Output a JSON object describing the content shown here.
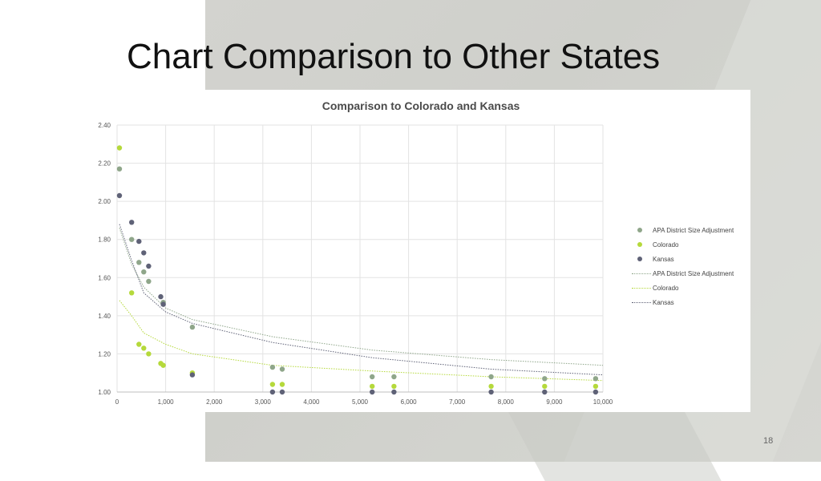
{
  "slide": {
    "title": "Chart Comparison to Other States",
    "page_number": "18"
  },
  "colors": {
    "apa": "#8fa68a",
    "colorado": "#b5d93b",
    "kansas": "#5f6277",
    "grid": "#e3e3e3"
  },
  "chart_data": {
    "type": "scatter",
    "title": "Comparison to Colorado and Kansas",
    "xlabel": "",
    "ylabel": "",
    "xlim": [
      0,
      10000
    ],
    "ylim": [
      1.0,
      2.4
    ],
    "x_ticks": [
      "0",
      "1,000",
      "2,000",
      "3,000",
      "4,000",
      "5,000",
      "6,000",
      "7,000",
      "8,000",
      "9,000",
      "10,000"
    ],
    "y_ticks": [
      "1.00",
      "1.20",
      "1.40",
      "1.60",
      "1.80",
      "2.00",
      "2.20",
      "2.40"
    ],
    "grid": true,
    "legend_position": "right",
    "series": [
      {
        "name": "APA District Size Adjustment",
        "kind": "points",
        "color_key": "apa",
        "points": [
          [
            50,
            2.17
          ],
          [
            300,
            1.8
          ],
          [
            450,
            1.68
          ],
          [
            550,
            1.63
          ],
          [
            650,
            1.58
          ],
          [
            950,
            1.47
          ],
          [
            1550,
            1.34
          ],
          [
            3200,
            1.13
          ],
          [
            3400,
            1.12
          ],
          [
            5250,
            1.08
          ],
          [
            5700,
            1.08
          ],
          [
            7700,
            1.08
          ],
          [
            8800,
            1.07
          ],
          [
            9850,
            1.07
          ]
        ]
      },
      {
        "name": "Colorado",
        "kind": "points",
        "color_key": "colorado",
        "points": [
          [
            50,
            2.28
          ],
          [
            300,
            1.52
          ],
          [
            450,
            1.25
          ],
          [
            550,
            1.23
          ],
          [
            650,
            1.2
          ],
          [
            900,
            1.15
          ],
          [
            950,
            1.14
          ],
          [
            1550,
            1.1
          ],
          [
            3200,
            1.04
          ],
          [
            3400,
            1.04
          ],
          [
            5250,
            1.03
          ],
          [
            5700,
            1.03
          ],
          [
            7700,
            1.03
          ],
          [
            8800,
            1.03
          ],
          [
            9850,
            1.03
          ]
        ]
      },
      {
        "name": "Kansas",
        "kind": "points",
        "color_key": "kansas",
        "points": [
          [
            50,
            2.03
          ],
          [
            300,
            1.89
          ],
          [
            450,
            1.79
          ],
          [
            550,
            1.73
          ],
          [
            650,
            1.66
          ],
          [
            900,
            1.5
          ],
          [
            950,
            1.46
          ],
          [
            1550,
            1.09
          ],
          [
            3200,
            1.0
          ],
          [
            3400,
            1.0
          ],
          [
            5250,
            1.0
          ],
          [
            5700,
            1.0
          ],
          [
            7700,
            1.0
          ],
          [
            8800,
            1.0
          ],
          [
            9850,
            1.0
          ]
        ]
      },
      {
        "name": "APA District Size Adjustment",
        "kind": "trendline",
        "color_key": "apa",
        "points": [
          [
            50,
            1.86
          ],
          [
            300,
            1.67
          ],
          [
            550,
            1.55
          ],
          [
            1000,
            1.44
          ],
          [
            1550,
            1.38
          ],
          [
            3200,
            1.29
          ],
          [
            5250,
            1.22
          ],
          [
            7700,
            1.17
          ],
          [
            10000,
            1.14
          ]
        ]
      },
      {
        "name": "Colorado",
        "kind": "trendline",
        "color_key": "colorado",
        "points": [
          [
            50,
            1.48
          ],
          [
            300,
            1.4
          ],
          [
            550,
            1.31
          ],
          [
            1000,
            1.25
          ],
          [
            1550,
            1.2
          ],
          [
            3200,
            1.14
          ],
          [
            5250,
            1.11
          ],
          [
            7700,
            1.08
          ],
          [
            10000,
            1.06
          ]
        ]
      },
      {
        "name": "Kansas",
        "kind": "trendline",
        "color_key": "kansas",
        "points": [
          [
            50,
            1.88
          ],
          [
            300,
            1.69
          ],
          [
            550,
            1.52
          ],
          [
            1000,
            1.42
          ],
          [
            1550,
            1.36
          ],
          [
            3200,
            1.26
          ],
          [
            5250,
            1.18
          ],
          [
            7700,
            1.12
          ],
          [
            10000,
            1.09
          ]
        ]
      }
    ]
  }
}
